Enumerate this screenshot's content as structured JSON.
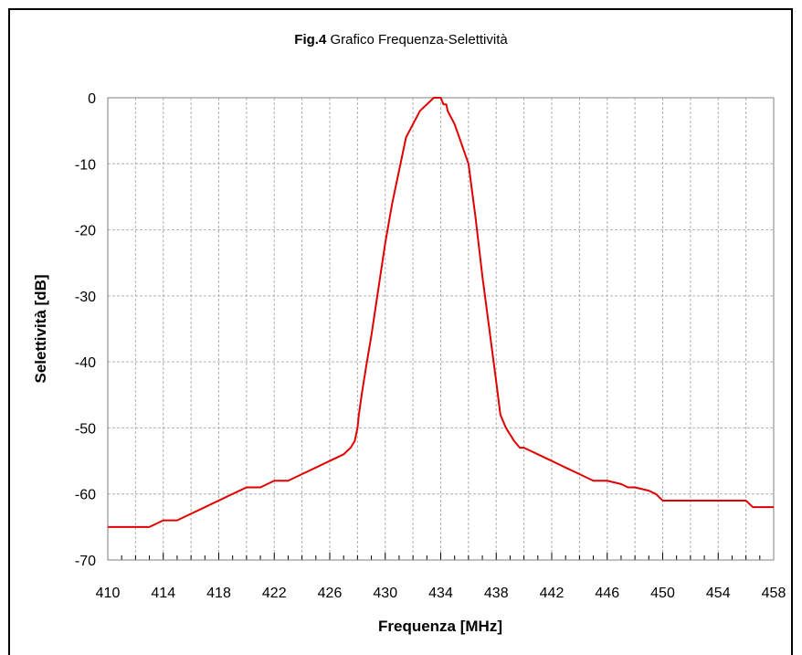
{
  "chart_data": {
    "type": "line",
    "title_bold": "Fig.4",
    "title_rest": " Grafico Frequenza-Selettività",
    "xlabel": "Frequenza [MHz]",
    "ylabel": "Selettività  [dB]",
    "xlim": [
      410,
      458
    ],
    "ylim": [
      -70,
      0
    ],
    "xticks": [
      410,
      414,
      418,
      422,
      426,
      430,
      434,
      438,
      442,
      446,
      450,
      454,
      458
    ],
    "yticks": [
      0,
      -10,
      -20,
      -30,
      -40,
      -50,
      -60,
      -70
    ],
    "grid": true,
    "line_color": "#e00000",
    "series": [
      {
        "x": [
          410,
          413,
          413.5,
          414,
          415,
          415.5,
          416,
          417,
          418,
          419,
          420,
          421,
          421.5,
          422,
          423,
          423.5,
          424,
          425,
          426,
          426.5,
          427,
          427.5,
          427.8,
          428,
          428.1,
          428.3,
          428.6,
          429,
          429.5,
          430,
          430.5,
          431,
          431.3,
          431.5,
          432,
          432.5,
          433,
          433.5,
          433.8,
          434,
          434.2,
          434.4,
          434.5,
          435,
          435.5,
          436,
          436.5,
          437,
          437.5,
          438,
          438.3,
          438.7,
          439,
          439.3,
          439.5,
          439.7,
          440,
          440.5,
          441,
          442,
          443,
          444,
          445,
          446,
          447,
          447.5,
          448,
          449,
          449.5,
          450,
          451,
          452,
          453,
          454,
          455,
          456,
          456.5,
          457,
          458
        ],
        "y": [
          -65,
          -65,
          -64.5,
          -64,
          -64,
          -63.5,
          -63,
          -62,
          -61,
          -60,
          -59,
          -59,
          -58.5,
          -58,
          -58,
          -57.5,
          -57,
          -56,
          -55,
          -54.5,
          -54,
          -53,
          -52,
          -50,
          -48,
          -45,
          -41,
          -36,
          -29,
          -22,
          -16,
          -11,
          -8,
          -6,
          -4,
          -2,
          -1,
          0,
          0,
          0,
          -1,
          -1,
          -2,
          -4,
          -7,
          -10,
          -18,
          -27,
          -35,
          -43,
          -48,
          -50,
          -51,
          -52,
          -52.5,
          -53,
          -53,
          -53.5,
          -54,
          -55,
          -56,
          -57,
          -58,
          -58,
          -58.5,
          -59,
          -59,
          -59.5,
          -60,
          -61,
          -61,
          -61,
          -61,
          -61,
          -61,
          -61,
          -62,
          -62,
          -62
        ]
      }
    ]
  }
}
